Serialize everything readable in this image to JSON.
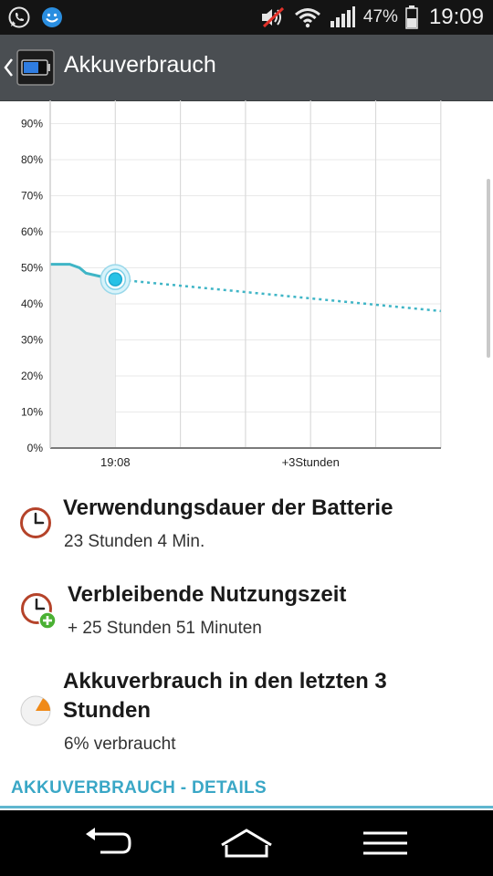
{
  "status_bar": {
    "battery_percent": "47%",
    "time": "19:09",
    "icons": [
      "whatsapp-icon",
      "messenger-icon",
      "volume-mute-icon",
      "wifi-icon",
      "signal-icon",
      "battery-icon"
    ]
  },
  "action_bar": {
    "title": "Akkuverbrauch",
    "back_icon": "chevron-left-icon",
    "app_icon": "battery-app-icon"
  },
  "chart_data": {
    "type": "line",
    "y_ticks": [
      "0%",
      "10%",
      "20%",
      "30%",
      "40%",
      "50%",
      "60%",
      "70%",
      "80%",
      "90%"
    ],
    "x_labels": [
      "19:08",
      "+3Stunden"
    ],
    "ylim": [
      0,
      100
    ],
    "history": {
      "name": "",
      "points": [
        [
          0,
          51
        ],
        [
          0.3,
          51
        ],
        [
          0.45,
          50
        ],
        [
          0.55,
          48.5
        ],
        [
          0.75,
          47.7
        ],
        [
          1.0,
          46.8
        ]
      ]
    },
    "current": 46.8,
    "projection": {
      "name": "",
      "points": [
        [
          1.0,
          46.8
        ],
        [
          6.0,
          38
        ]
      ]
    },
    "grid": true,
    "colors": {
      "line": "#3fb5c6",
      "fill": "#efefef",
      "marker": "#27c2e6"
    }
  },
  "info": [
    {
      "icon": "clock-icon",
      "title": "Verwendungsdauer der Batterie",
      "value": "23 Stunden 4 Min."
    },
    {
      "icon": "clock-plus-icon",
      "title": "Verbleibende Nutzungszeit",
      "value": "+ 25 Stunden 51 Minuten"
    },
    {
      "icon": "pie-icon",
      "title_line1": "Akkuverbrauch in den letzten 3",
      "title_line2": "Stunden",
      "value": "6% verbraucht"
    }
  ],
  "details_header": "AKKUVERBRAUCH - DETAILS",
  "nav": [
    "back-icon",
    "home-icon",
    "menu-icon"
  ]
}
